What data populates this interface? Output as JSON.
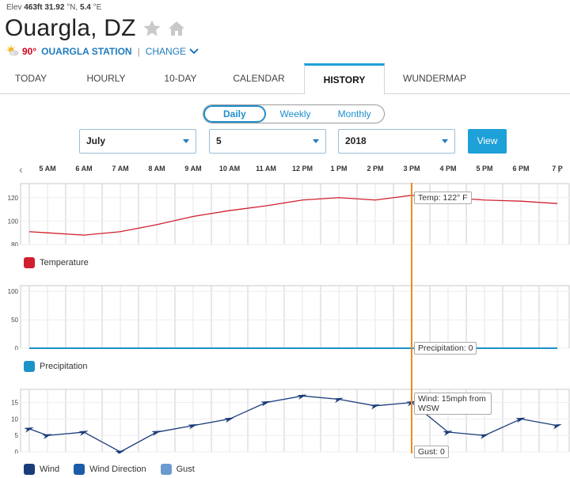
{
  "header": {
    "elev_label": "Elev",
    "elev_value": "463ft",
    "lat_value": "31.92",
    "lat_unit": "°N,",
    "lon_value": "5.4",
    "lon_unit": "°E",
    "city": "Ouargla, DZ",
    "current_temp": "90°",
    "station": "OUARGLA STATION",
    "separator": "|",
    "change_label": "CHANGE"
  },
  "tabs": [
    {
      "label": "Today"
    },
    {
      "label": "Hourly"
    },
    {
      "label": "10-Day"
    },
    {
      "label": "Calendar"
    },
    {
      "label": "History",
      "active": true
    },
    {
      "label": "Wundermap"
    }
  ],
  "range_toggle": {
    "options": [
      "Daily",
      "Weekly",
      "Monthly"
    ],
    "selected": "Daily"
  },
  "date_picker": {
    "month": "July",
    "day": "5",
    "year": "2018",
    "view_label": "View"
  },
  "timeline": {
    "hours": [
      "5 AM",
      "6 AM",
      "7 AM",
      "8 AM",
      "9 AM",
      "10 AM",
      "11 AM",
      "12 PM",
      "1 PM",
      "2 PM",
      "3 PM",
      "4 PM",
      "5 PM",
      "6 PM",
      "7 P"
    ]
  },
  "legends": {
    "temperature": "Temperature",
    "precipitation": "Precipitation",
    "wind": "Wind",
    "wind_direction": "Wind Direction",
    "gust": "Gust"
  },
  "tooltips": {
    "temp": "Temp: 122° F",
    "precip": "Precipitation: 0",
    "wind_line1": "Wind: 15mph from",
    "wind_line2": "WSW",
    "gust": "Gust: 0"
  },
  "colors": {
    "temperature": "#d0202e",
    "precipitation": "#1b92c9",
    "wind": "#1a3c7a",
    "wind_direction": "#1d5ca8",
    "gust": "#6c9bd0",
    "cursor": "#f28a1e",
    "accent": "#1ea0d8"
  },
  "chart_data": [
    {
      "type": "line",
      "series": [
        {
          "name": "Temperature",
          "x": [
            4.5,
            5,
            6,
            7,
            8,
            9,
            10,
            11,
            12,
            13,
            14,
            15,
            16,
            17,
            18,
            19
          ],
          "values": [
            91,
            90,
            88,
            91,
            97,
            104,
            109,
            113,
            118,
            120,
            118,
            122,
            120,
            118,
            117,
            115
          ]
        }
      ],
      "yticks": [
        80,
        100,
        120
      ],
      "ylim": [
        80,
        132
      ]
    },
    {
      "type": "line",
      "series": [
        {
          "name": "Precipitation",
          "x": [
            4.5,
            19
          ],
          "values": [
            0,
            0
          ]
        }
      ],
      "yticks": [
        0,
        50,
        100
      ],
      "ylim": [
        0,
        110
      ]
    },
    {
      "type": "line",
      "series": [
        {
          "name": "Wind",
          "x": [
            4.5,
            5,
            6,
            7,
            8,
            9,
            10,
            11,
            12,
            13,
            14,
            15,
            16,
            17,
            18,
            19
          ],
          "values": [
            7,
            5,
            6,
            0,
            6,
            8,
            10,
            15,
            17,
            16,
            14,
            15,
            6,
            5,
            10,
            8
          ]
        }
      ],
      "yticks": [
        0,
        5,
        10,
        15
      ],
      "ylim": [
        0,
        19
      ]
    }
  ]
}
